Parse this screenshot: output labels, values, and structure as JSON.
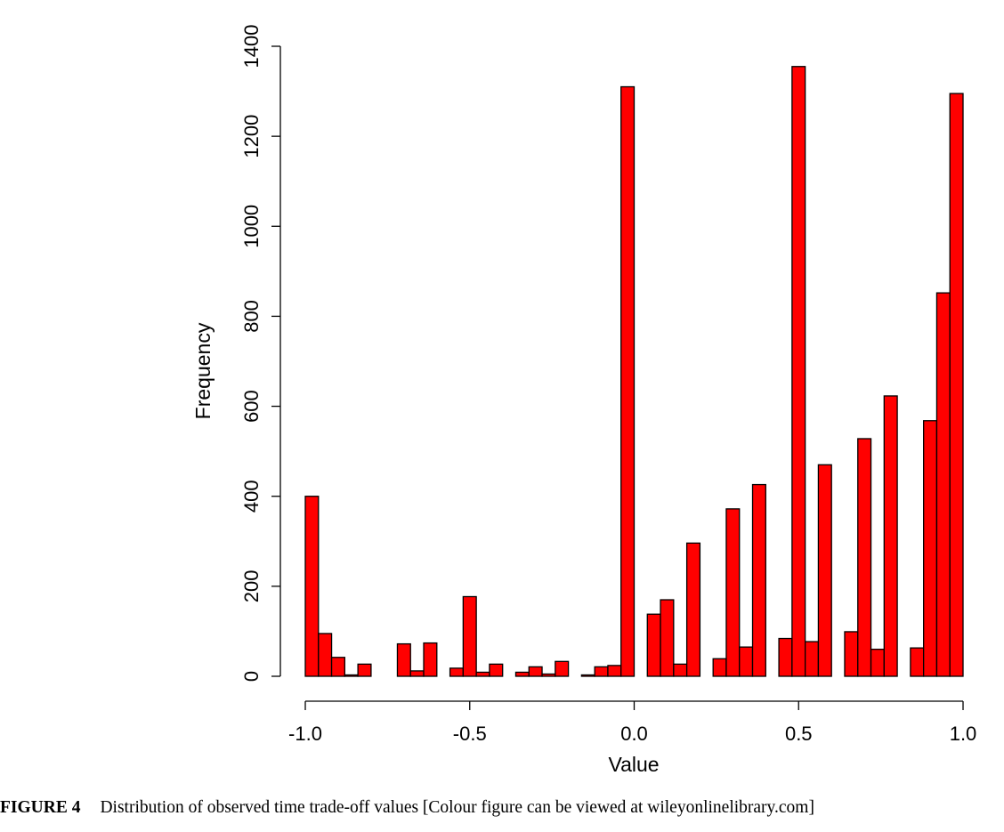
{
  "chart_data": {
    "type": "bar",
    "title": "",
    "xlabel": "Value",
    "ylabel": "Frequency",
    "xlim": [
      -1.0,
      1.0
    ],
    "ylim": [
      0,
      1400
    ],
    "x_ticks": [
      "-1.0",
      "-0.5",
      "0.0",
      "0.5",
      "1.0"
    ],
    "y_ticks": [
      "0",
      "200",
      "400",
      "600",
      "800",
      "1000",
      "1200",
      "1400"
    ],
    "grid": false,
    "bar_color": "#ff0000",
    "bin_width": 0.04,
    "series": [
      {
        "bins": [
          {
            "x": -1.0,
            "value": 400
          },
          {
            "x": -0.96,
            "value": 95
          },
          {
            "x": -0.92,
            "value": 42
          },
          {
            "x": -0.88,
            "value": 3
          },
          {
            "x": -0.84,
            "value": 27
          },
          {
            "x": -0.8,
            "value": 0
          },
          {
            "x": -0.76,
            "value": 0
          },
          {
            "x": -0.72,
            "value": 72
          },
          {
            "x": -0.68,
            "value": 12
          },
          {
            "x": -0.64,
            "value": 74
          },
          {
            "x": -0.6,
            "value": 0
          },
          {
            "x": -0.56,
            "value": 18
          },
          {
            "x": -0.52,
            "value": 177
          },
          {
            "x": -0.48,
            "value": 9
          },
          {
            "x": -0.44,
            "value": 27
          },
          {
            "x": -0.4,
            "value": 0
          },
          {
            "x": -0.36,
            "value": 9
          },
          {
            "x": -0.32,
            "value": 21
          },
          {
            "x": -0.28,
            "value": 5
          },
          {
            "x": -0.24,
            "value": 33
          },
          {
            "x": -0.2,
            "value": 0
          },
          {
            "x": -0.16,
            "value": 3
          },
          {
            "x": -0.12,
            "value": 21
          },
          {
            "x": -0.08,
            "value": 24
          },
          {
            "x": -0.04,
            "value": 1310
          },
          {
            "x": 0.0,
            "value": 0
          },
          {
            "x": 0.04,
            "value": 138
          },
          {
            "x": 0.08,
            "value": 170
          },
          {
            "x": 0.12,
            "value": 27
          },
          {
            "x": 0.16,
            "value": 296
          },
          {
            "x": 0.2,
            "value": 0
          },
          {
            "x": 0.24,
            "value": 39
          },
          {
            "x": 0.28,
            "value": 372
          },
          {
            "x": 0.32,
            "value": 65
          },
          {
            "x": 0.36,
            "value": 426
          },
          {
            "x": 0.4,
            "value": 0
          },
          {
            "x": 0.44,
            "value": 84
          },
          {
            "x": 0.48,
            "value": 1355
          },
          {
            "x": 0.52,
            "value": 77
          },
          {
            "x": 0.56,
            "value": 470
          },
          {
            "x": 0.6,
            "value": 0
          },
          {
            "x": 0.64,
            "value": 99
          },
          {
            "x": 0.68,
            "value": 528
          },
          {
            "x": 0.72,
            "value": 60
          },
          {
            "x": 0.76,
            "value": 623
          },
          {
            "x": 0.8,
            "value": 0
          },
          {
            "x": 0.84,
            "value": 63
          },
          {
            "x": 0.88,
            "value": 568
          },
          {
            "x": 0.92,
            "value": 852
          },
          {
            "x": 0.96,
            "value": 1295
          }
        ]
      }
    ]
  },
  "caption": {
    "label": "FIGURE 4",
    "text": "Distribution of observed time trade-off values [Colour figure can be viewed at wileyonlinelibrary.com]"
  }
}
